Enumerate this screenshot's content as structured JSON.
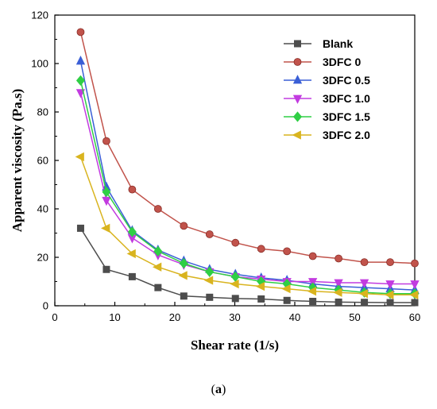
{
  "chart_data": {
    "type": "line",
    "xlabel": "Shear rate (1/s)",
    "ylabel": "Apparent viscosity (Pa.s)",
    "xlim": [
      0,
      60
    ],
    "ylim": [
      0,
      120
    ],
    "xticks": [
      0,
      10,
      20,
      30,
      40,
      50,
      60
    ],
    "yticks": [
      0,
      20,
      40,
      60,
      80,
      100,
      120
    ],
    "grid": false,
    "legend_position": "top-right",
    "x": [
      4.3,
      8.6,
      12.9,
      17.2,
      21.5,
      25.8,
      30.1,
      34.4,
      38.7,
      43.0,
      47.3,
      51.6,
      55.9,
      60.2
    ],
    "series": [
      {
        "name": "Blank",
        "color": "#4d4d4d",
        "marker": "square",
        "values": [
          32,
          15,
          12,
          7.5,
          4,
          3.5,
          3,
          2.8,
          2.2,
          1.8,
          1.5,
          1.4,
          1.3,
          1.3
        ]
      },
      {
        "name": "3DFC 0",
        "color": "#c1534b",
        "marker": "circle",
        "values": [
          113,
          68,
          48,
          40,
          33,
          29.5,
          26,
          23.5,
          22.5,
          20.5,
          19.5,
          18,
          18,
          17.5
        ]
      },
      {
        "name": "3DFC 0.5",
        "color": "#3a5fd6",
        "marker": "triangle-up",
        "values": [
          101,
          49,
          31,
          23,
          18.5,
          15,
          13,
          11.5,
          10.5,
          9,
          8,
          7.5,
          7,
          6.5
        ]
      },
      {
        "name": "3DFC 1.0",
        "color": "#c23be0",
        "marker": "triangle-down",
        "values": [
          88,
          43.5,
          28,
          21,
          17,
          14,
          12,
          11,
          10,
          10,
          9.5,
          9.5,
          9,
          9
        ]
      },
      {
        "name": "3DFC 1.5",
        "color": "#2fcf45",
        "marker": "diamond",
        "values": [
          93,
          47,
          30.5,
          22.5,
          17.5,
          14,
          12,
          10,
          9,
          7.5,
          6.5,
          5.5,
          5,
          5
        ]
      },
      {
        "name": "3DFC 2.0",
        "color": "#d9b41f",
        "marker": "triangle-left",
        "values": [
          61.5,
          32,
          21.5,
          16,
          12.5,
          10.5,
          9,
          8,
          7,
          6,
          5.5,
          5,
          4.5,
          4.5
        ]
      }
    ]
  },
  "caption": {
    "open": "(",
    "letter": "a",
    "close": ")"
  }
}
